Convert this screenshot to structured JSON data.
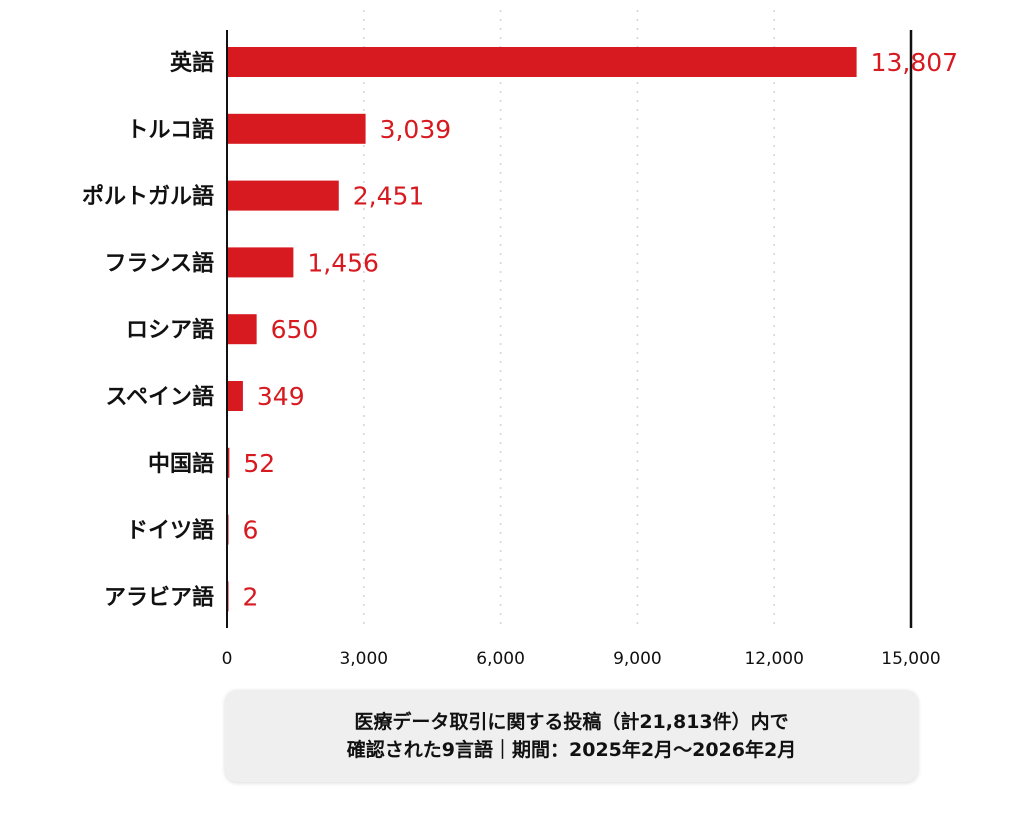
{
  "chart_data": {
    "type": "bar",
    "orientation": "horizontal",
    "categories": [
      "英語",
      "トルコ語",
      "ポルトガル語",
      "フランス語",
      "ロシア語",
      "スペイン語",
      "中国語",
      "ドイツ語",
      "アラビア語"
    ],
    "values": [
      13807,
      3039,
      2451,
      1456,
      650,
      349,
      52,
      6,
      2
    ],
    "value_labels": [
      "13,807",
      "3,039",
      "2,451",
      "1,456",
      "650",
      "349",
      "52",
      "6",
      "2"
    ],
    "xlim": [
      0,
      15000
    ],
    "x_ticks": [
      0,
      3000,
      6000,
      9000,
      12000,
      15000
    ],
    "x_tick_labels": [
      "0",
      "3,000",
      "6,000",
      "9,000",
      "12,000",
      "15,000"
    ],
    "grid": "vertical dotted",
    "bar_color": "#d71920",
    "label_color": "#d71920",
    "title": "",
    "xlabel": "",
    "ylabel": ""
  },
  "caption": {
    "line1": "医療データ取引に関する投稿（計21,813件）内で",
    "line2": "確認された9言語｜期間：2025年2月〜2026年2月"
  }
}
